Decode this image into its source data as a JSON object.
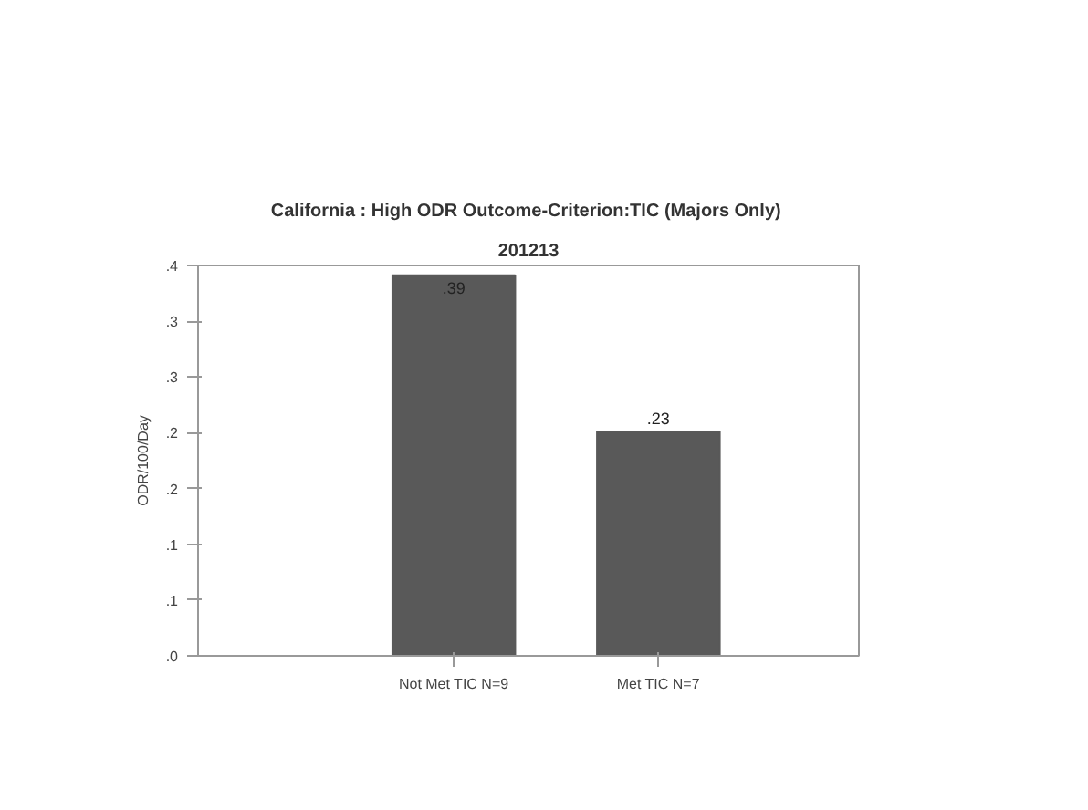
{
  "chart_data": {
    "type": "bar",
    "title": "California : High  ODR Outcome-Criterion:TIC (Majors Only)",
    "subtitle": "201213",
    "ylabel": "ODR/100/Day",
    "categories": [
      "Not Met TIC N=9",
      "Met TIC N=7"
    ],
    "values": [
      0.39,
      0.23
    ],
    "color": "#595959",
    "value_labels": [
      ".39",
      ".23"
    ],
    "ylim": [
      0,
      0.4
    ],
    "yticks": [
      {
        "value": 0,
        "label": ".0"
      },
      {
        "value": 0.0571,
        "label": ".1"
      },
      {
        "value": 0.1143,
        "label": ".1"
      },
      {
        "value": 0.1714,
        "label": ".2"
      },
      {
        "value": 0.2286,
        "label": ".2"
      },
      {
        "value": 0.2857,
        "label": ".3"
      },
      {
        "value": 0.3429,
        "label": ".3"
      },
      {
        "value": 0.4,
        "label": ".4"
      }
    ],
    "grid": false
  }
}
